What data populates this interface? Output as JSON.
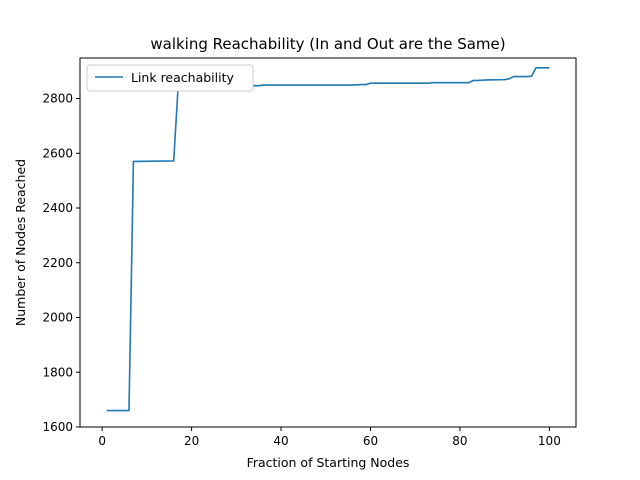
{
  "chart_data": {
    "type": "line",
    "title": "walking Reachability (In and Out are the Same)",
    "xlabel": "Fraction of Starting Nodes",
    "ylabel": "Number of Nodes Reached",
    "xlim": [
      -4.95,
      105.95
    ],
    "ylim": [
      1600,
      2948
    ],
    "xticks": [
      0,
      20,
      40,
      60,
      80,
      100
    ],
    "yticks": [
      1600,
      1800,
      2000,
      2200,
      2400,
      2600,
      2800
    ],
    "legend_position": "upper-left",
    "grid": false,
    "series": [
      {
        "name": "Link reachability",
        "color": "#1f77b4",
        "x": [
          1,
          6,
          7,
          16,
          17,
          23,
          24,
          35,
          36,
          56,
          58,
          59,
          60,
          73,
          74,
          81,
          82,
          83,
          84,
          85,
          86,
          90,
          91,
          92,
          95,
          96,
          97,
          100
        ],
        "y": [
          1660,
          1660,
          2570,
          2572,
          2846,
          2846,
          2847,
          2847,
          2849,
          2849,
          2851,
          2851,
          2856,
          2856,
          2858,
          2858,
          2858,
          2866,
          2866,
          2867,
          2868,
          2869,
          2872,
          2880,
          2880,
          2881,
          2912,
          2912
        ]
      }
    ]
  }
}
